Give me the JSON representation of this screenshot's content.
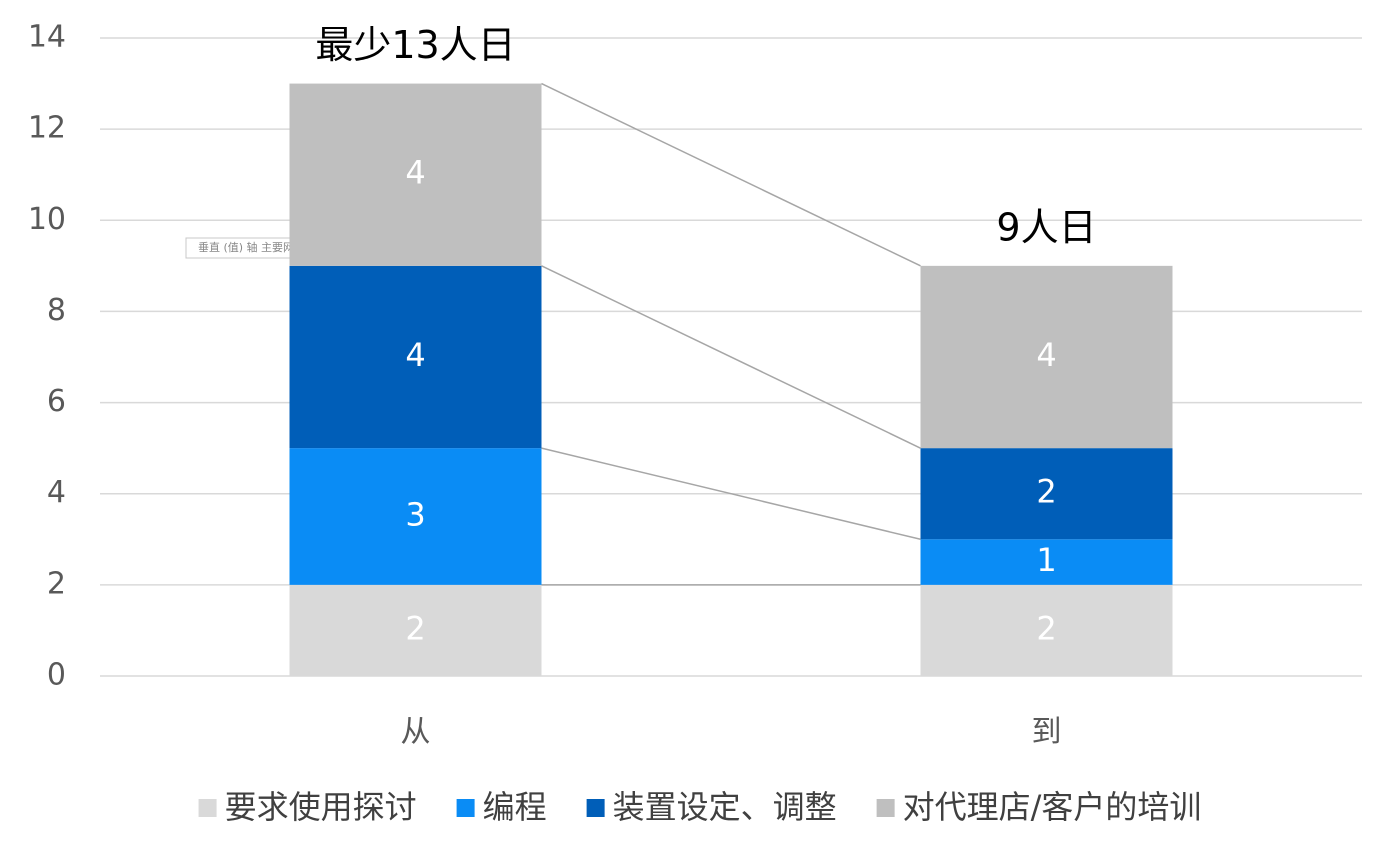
{
  "chart_data": {
    "type": "stacked_bar",
    "categories": [
      "从",
      "到"
    ],
    "series": [
      {
        "name": "要求使用探讨",
        "color": "#d9d9d9",
        "values": [
          2,
          2
        ]
      },
      {
        "name": "编程",
        "color": "#0a8cf5",
        "values": [
          3,
          1
        ]
      },
      {
        "name": "装置设定、调整",
        "color": "#005eb8",
        "values": [
          4,
          2
        ]
      },
      {
        "name": "对代理店/客户的培训",
        "color": "#bfbfbf",
        "values": [
          4,
          4
        ]
      }
    ],
    "annotations": [
      "最少13人日",
      "9人日"
    ],
    "tooltip": "垂直 (值) 轴 主要网格线",
    "ylim": [
      0,
      14
    ],
    "yticks": [
      0,
      2,
      4,
      6,
      8,
      10,
      12,
      14
    ],
    "grid": true,
    "legend": "bottom"
  }
}
